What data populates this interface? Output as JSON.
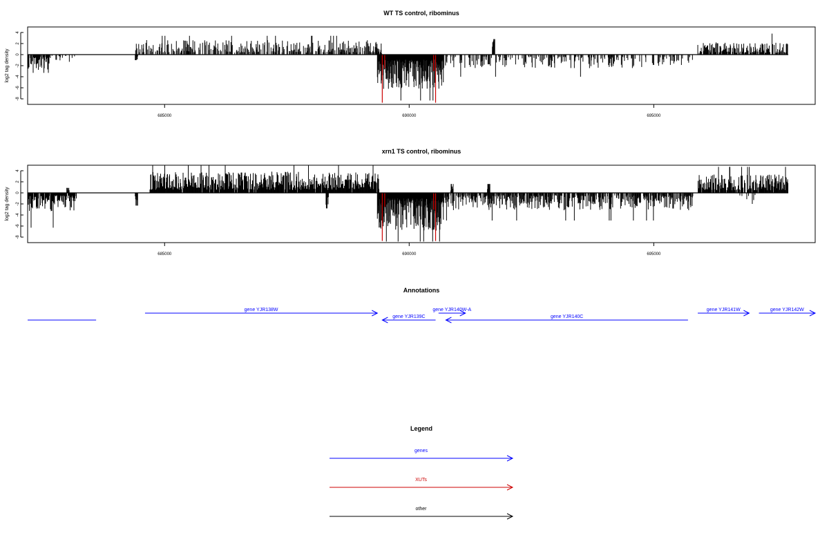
{
  "chart_data": [
    {
      "type": "bar",
      "title": "WT TS control, ribominus",
      "ylabel": "log2 tag density",
      "xlabel": "",
      "xlim": [
        682200,
        698300
      ],
      "ylim": [
        -9,
        5
      ],
      "x_ticks": [
        685000,
        690000,
        695000
      ],
      "x_tick_labels": [
        "685000",
        "690000",
        "695000"
      ],
      "y_ticks": [
        4,
        2,
        0,
        -2,
        -4,
        -6,
        -8
      ],
      "y_tick_labels": [
        "4",
        "2",
        "0",
        "-2",
        "-4",
        "-6",
        "-8"
      ],
      "grid": false,
      "colors": {
        "default": "#000000",
        "xut": "#cc0000"
      },
      "series": [
        {
          "strand": "plus",
          "segments": [
            {
              "x_start": 684400,
              "x_end": 689350,
              "density": 0.42,
              "mean": 1.5,
              "max": 3.4
            },
            {
              "x_start": 689350,
              "x_end": 689450,
              "density": 0.7,
              "mean": 0.8,
              "max": 2.0
            },
            {
              "x_start": 691700,
              "x_end": 691750,
              "density": 1.0,
              "mean": 2.8,
              "max": 2.8
            },
            {
              "x_start": 695900,
              "x_end": 697750,
              "density": 0.6,
              "mean": 1.3,
              "max": 3.8
            }
          ]
        },
        {
          "strand": "minus",
          "segments": [
            {
              "x_start": 682200,
              "x_end": 682650,
              "density": 0.8,
              "mean": 1.6,
              "max": 3.3
            },
            {
              "x_start": 682650,
              "x_end": 683200,
              "density": 0.12,
              "mean": 0.8,
              "max": 1.3
            },
            {
              "x_start": 684400,
              "x_end": 684450,
              "density": 1.0,
              "mean": 1.0,
              "max": 1.0
            },
            {
              "x_start": 689350,
              "x_end": 690700,
              "density": 1.0,
              "mean": 3.6,
              "max": 8.3
            },
            {
              "x_start": 690700,
              "x_end": 695800,
              "density": 0.3,
              "mean": 1.4,
              "max": 4.0
            }
          ]
        }
      ],
      "xut_bars": [
        {
          "x": 689450,
          "y": -8.7
        },
        {
          "x": 690540,
          "y": -8.7
        },
        {
          "x": 689500,
          "y": -2.5
        },
        {
          "x": 690500,
          "y": -3.0
        }
      ]
    },
    {
      "type": "bar",
      "title": "xrn1 TS control, ribominus",
      "ylabel": "log2 tag density",
      "xlabel": "",
      "xlim": [
        682200,
        698300
      ],
      "ylim": [
        -9,
        5
      ],
      "x_ticks": [
        685000,
        690000,
        695000
      ],
      "x_tick_labels": [
        "685000",
        "690000",
        "695000"
      ],
      "y_ticks": [
        4,
        2,
        0,
        -2,
        -4,
        -6,
        -8
      ],
      "y_tick_labels": [
        "4",
        "2",
        "0",
        "-2",
        "-4",
        "-6",
        "-8"
      ],
      "grid": false,
      "colors": {
        "default": "#000000",
        "xut": "#cc0000"
      },
      "series": [
        {
          "strand": "plus",
          "segments": [
            {
              "x_start": 683000,
              "x_end": 683050,
              "density": 1.0,
              "mean": 0.9,
              "max": 0.9
            },
            {
              "x_start": 684700,
              "x_end": 689400,
              "density": 0.8,
              "mean": 2.2,
              "max": 5.0
            },
            {
              "x_start": 690850,
              "x_end": 690900,
              "density": 1.0,
              "mean": 1.6,
              "max": 1.6
            },
            {
              "x_start": 691600,
              "x_end": 691650,
              "density": 1.0,
              "mean": 1.6,
              "max": 1.6
            },
            {
              "x_start": 695900,
              "x_end": 697750,
              "density": 0.75,
              "mean": 1.9,
              "max": 4.7
            }
          ]
        },
        {
          "strand": "minus",
          "segments": [
            {
              "x_start": 682200,
              "x_end": 683200,
              "density": 0.75,
              "mean": 1.9,
              "max": 6.3
            },
            {
              "x_start": 684400,
              "x_end": 684450,
              "density": 1.0,
              "mean": 2.3,
              "max": 2.3
            },
            {
              "x_start": 688300,
              "x_end": 688350,
              "density": 1.0,
              "mean": 2.8,
              "max": 2.8
            },
            {
              "x_start": 689350,
              "x_end": 690700,
              "density": 1.0,
              "mean": 4.0,
              "max": 8.8
            },
            {
              "x_start": 690700,
              "x_end": 695800,
              "density": 0.6,
              "mean": 1.8,
              "max": 5.0
            },
            {
              "x_start": 696400,
              "x_end": 697300,
              "density": 0.05,
              "mean": 1.5,
              "max": 2.0
            }
          ]
        }
      ],
      "xut_bars": [
        {
          "x": 689450,
          "y": -8.7
        },
        {
          "x": 690540,
          "y": -8.7
        },
        {
          "x": 689500,
          "y": -2.5
        },
        {
          "x": 690500,
          "y": -3.0
        }
      ]
    }
  ],
  "annotations": {
    "title": "Annotations",
    "color": "#0000ff",
    "features": [
      {
        "label": "",
        "strand": "plus",
        "x_start": 682200,
        "x_end": 683600,
        "row": 0,
        "arrow": false
      },
      {
        "label": "gene YJR138W",
        "strand": "plus",
        "x_start": 684600,
        "x_end": 689350,
        "row": 1,
        "arrow": true
      },
      {
        "label": "gene YJR139C",
        "strand": "minus",
        "x_start": 689450,
        "x_end": 690540,
        "row": 0,
        "arrow": true
      },
      {
        "label": "gene YJR140W-A",
        "strand": "plus",
        "x_start": 690600,
        "x_end": 691150,
        "row": 1,
        "arrow": true
      },
      {
        "label": "gene YJR140C",
        "strand": "minus",
        "x_start": 690750,
        "x_end": 695700,
        "row": 0,
        "arrow": true
      },
      {
        "label": "gene YJR141W",
        "strand": "plus",
        "x_start": 695900,
        "x_end": 696950,
        "row": 1,
        "arrow": true
      },
      {
        "label": "gene YJR142W",
        "strand": "plus",
        "x_start": 697150,
        "x_end": 698300,
        "row": 1,
        "arrow": true
      }
    ]
  },
  "legend": {
    "title": "Legend",
    "items": [
      {
        "label": "genes",
        "color": "#0000ff"
      },
      {
        "label": "XUTs",
        "color": "#cc0000"
      },
      {
        "label": "other",
        "color": "#000000"
      }
    ]
  }
}
